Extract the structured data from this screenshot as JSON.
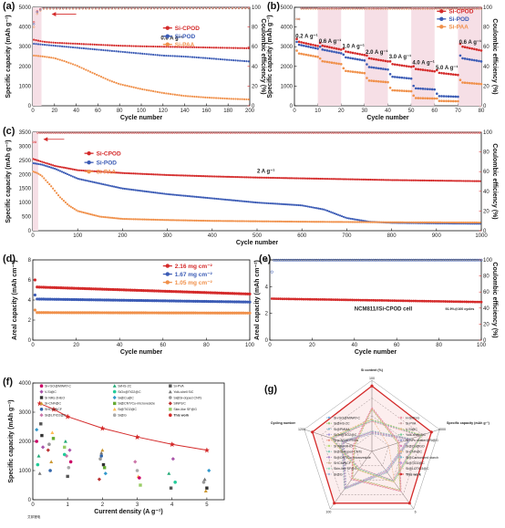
{
  "chart_data": [
    {
      "panel": "(a)",
      "type": "line",
      "xlabel": "Cycle number",
      "ylabel": "Specific capacity (mAh g⁻¹)",
      "ylabel_right": "Coulombic efficiency (%)",
      "xlim": [
        0,
        200
      ],
      "ylim": [
        0,
        5000
      ],
      "ylim_right": [
        0,
        100
      ],
      "xticks": [
        0,
        20,
        40,
        60,
        80,
        100,
        120,
        140,
        160,
        180,
        200
      ],
      "yticks": [
        0,
        1000,
        2000,
        3000,
        4000,
        5000
      ],
      "yticks_right": [
        0,
        20,
        40,
        60,
        80,
        100
      ],
      "annotation": "0.6 A g⁻¹",
      "legend": [
        "Si-CPOD",
        "Si-POD",
        "Si-PAA"
      ],
      "series": [
        {
          "name": "Si-CPOD",
          "color": "#d42a2a",
          "x": [
            1,
            10,
            20,
            40,
            60,
            80,
            100,
            120,
            140,
            160,
            180,
            200
          ],
          "y": [
            3350,
            3250,
            3200,
            3150,
            3100,
            3050,
            3020,
            3000,
            2980,
            2960,
            2940,
            2920
          ]
        },
        {
          "name": "Si-POD",
          "color": "#3b5bb5",
          "x": [
            1,
            10,
            20,
            40,
            60,
            80,
            100,
            120,
            140,
            160,
            180,
            200
          ],
          "y": [
            3150,
            3100,
            3050,
            2950,
            2850,
            2750,
            2650,
            2550,
            2500,
            2420,
            2330,
            2250
          ]
        },
        {
          "name": "Si-PAA",
          "color": "#f0904a",
          "x": [
            1,
            10,
            20,
            30,
            40,
            50,
            60,
            70,
            80,
            100,
            120,
            140,
            160,
            180,
            200
          ],
          "y": [
            2550,
            2500,
            2420,
            2250,
            2050,
            1800,
            1550,
            1300,
            1100,
            850,
            650,
            500,
            420,
            360,
            320
          ]
        }
      ],
      "ce_series": [
        {
          "name": "Si-CPOD",
          "color": "#d42a2a",
          "x": [
            1,
            3,
            6,
            10,
            200
          ],
          "y": [
            85,
            95,
            98,
            99,
            99.5
          ]
        },
        {
          "name": "Si-POD",
          "color": "#3b5bb5",
          "x": [
            1,
            3,
            6,
            10,
            200
          ],
          "y": [
            83,
            94,
            97,
            98.8,
            99.3
          ]
        },
        {
          "name": "Si-PAA",
          "color": "#f0904a",
          "x": [
            1,
            3,
            6,
            10,
            200
          ],
          "y": [
            80,
            92,
            96,
            98.5,
            99
          ]
        }
      ]
    },
    {
      "panel": "(b)",
      "type": "scatter",
      "xlabel": "Cycle number",
      "ylabel": "Specific capacity (mAh g⁻¹)",
      "ylabel_right": "Coulombic efficiency (%)",
      "xlim": [
        0,
        80
      ],
      "ylim": [
        0,
        5000
      ],
      "ylim_right": [
        0,
        100
      ],
      "xticks": [
        0,
        10,
        20,
        30,
        40,
        50,
        60,
        70,
        80
      ],
      "yticks": [
        0,
        1000,
        2000,
        3000,
        4000,
        5000
      ],
      "yticks_right": [
        0,
        20,
        40,
        60,
        80,
        100
      ],
      "rate_labels": [
        "0.2 A g⁻¹",
        "0.6 A g⁻¹",
        "1.0 A g⁻¹",
        "2.0 A g⁻¹",
        "3.0 A g⁻¹",
        "4.0 A g⁻¹",
        "5.0 A g⁻¹",
        "0.6 A g⁻¹"
      ],
      "rate_segments": [
        [
          0,
          10
        ],
        [
          10,
          20
        ],
        [
          20,
          30
        ],
        [
          30,
          40
        ],
        [
          40,
          50
        ],
        [
          50,
          60
        ],
        [
          60,
          70
        ],
        [
          70,
          80
        ]
      ],
      "legend": [
        "Si-CPOD",
        "Si-POD",
        "Si-PAA"
      ],
      "series": [
        {
          "name": "Si-CPOD",
          "color": "#d42a2a",
          "levels": [
            3300,
            3100,
            2800,
            2450,
            2150,
            1900,
            1700,
            3050
          ]
        },
        {
          "name": "Si-POD",
          "color": "#3b5bb5",
          "levels": [
            3150,
            2900,
            2500,
            2000,
            1500,
            900,
            500,
            2450
          ]
        },
        {
          "name": "Si-PAA",
          "color": "#f0904a",
          "levels": [
            2700,
            2300,
            1800,
            1300,
            800,
            400,
            250,
            1200
          ]
        }
      ]
    },
    {
      "panel": "(c)",
      "type": "line",
      "xlabel": "Cycle number",
      "ylabel": "Specific capacity (mAh g⁻¹)",
      "ylabel_right": "Coulombic efficiency (%)",
      "xlim": [
        0,
        1000
      ],
      "ylim": [
        0,
        3500
      ],
      "ylim_right": [
        0,
        100
      ],
      "xticks": [
        0,
        100,
        200,
        300,
        400,
        500,
        600,
        700,
        800,
        900,
        1000
      ],
      "yticks": [
        0,
        500,
        1000,
        1500,
        2000,
        2500,
        3000,
        3500
      ],
      "yticks_right": [
        0,
        20,
        40,
        60,
        80,
        100
      ],
      "annotation": "2 A g⁻¹",
      "legend": [
        "Si-CPOD",
        "Si-POD",
        "Si-PAA"
      ],
      "series": [
        {
          "name": "Si-CPOD",
          "color": "#d42a2a",
          "x": [
            1,
            20,
            50,
            100,
            200,
            300,
            400,
            500,
            600,
            700,
            800,
            900,
            1000
          ],
          "y": [
            2550,
            2450,
            2300,
            2150,
            2050,
            1980,
            1930,
            1890,
            1860,
            1830,
            1800,
            1780,
            1760
          ]
        },
        {
          "name": "Si-POD",
          "color": "#3b5bb5",
          "x": [
            1,
            20,
            50,
            100,
            200,
            300,
            400,
            500,
            600,
            650,
            700,
            750,
            800,
            900,
            1000
          ],
          "y": [
            2400,
            2350,
            2200,
            1850,
            1500,
            1300,
            1150,
            1000,
            900,
            750,
            450,
            320,
            280,
            260,
            250
          ]
        },
        {
          "name": "Si-PAA",
          "color": "#f0904a",
          "x": [
            1,
            10,
            20,
            40,
            60,
            80,
            100,
            150,
            200,
            300,
            400,
            600,
            800,
            1000
          ],
          "y": [
            2100,
            2050,
            1950,
            1600,
            1200,
            900,
            700,
            500,
            420,
            380,
            350,
            320,
            300,
            290
          ]
        }
      ]
    },
    {
      "panel": "(d)",
      "type": "scatter",
      "xlabel": "Cycle number",
      "ylabel": "Areal capacity (mAh cm⁻²)",
      "xlim": [
        0,
        100
      ],
      "ylim": [
        0,
        8
      ],
      "xticks": [
        0,
        20,
        40,
        60,
        80,
        100
      ],
      "yticks": [
        0,
        2,
        4,
        6,
        8
      ],
      "legend": [
        "2.16 mg cm⁻²",
        "1.67 mg cm⁻²",
        "1.05 mg cm⁻²"
      ],
      "series": [
        {
          "name": "2.16 mg cm⁻²",
          "color": "#d42a2a",
          "x": [
            1,
            100
          ],
          "y": [
            5.3,
            4.6
          ],
          "first": 6.0
        },
        {
          "name": "1.67 mg cm⁻²",
          "color": "#3b5bb5",
          "x": [
            1,
            100
          ],
          "y": [
            4.1,
            3.8
          ],
          "first": 4.5
        },
        {
          "name": "1.05 mg cm⁻²",
          "color": "#f0904a",
          "x": [
            1,
            100
          ],
          "y": [
            2.75,
            2.7
          ],
          "first": 3.0
        }
      ]
    },
    {
      "panel": "(e)",
      "type": "scatter",
      "xlabel": "Cycle number",
      "ylabel": "Areal capacity (mAh cm⁻²)",
      "ylabel_right": "Coulombic efficiency (%)",
      "xlim": [
        0,
        100
      ],
      "ylim": [
        0,
        6
      ],
      "ylim_right": [
        0,
        100
      ],
      "xticks": [
        0,
        20,
        40,
        60,
        80,
        100
      ],
      "yticks": [
        0,
        2,
        4,
        6
      ],
      "yticks_right": [
        0,
        20,
        40,
        60,
        80,
        100
      ],
      "annotation": "NCM811//Si-CPOD cell",
      "retention": "91.9%@100 cycles",
      "series": [
        {
          "name": "capacity",
          "color": "#d42a2a",
          "x": [
            1,
            100
          ],
          "y": [
            3.1,
            2.85
          ]
        },
        {
          "name": "CE",
          "color": "#3b5bb5",
          "x": [
            1,
            2,
            100
          ],
          "y": [
            85,
            99.6,
            99.7
          ]
        }
      ]
    },
    {
      "panel": "(f)",
      "type": "scatter",
      "xlabel": "Current density (A g⁻¹)",
      "ylabel": "Specific capacity (mAh g⁻¹)",
      "xlim": [
        0,
        5.5
      ],
      "ylim": [
        0,
        4000
      ],
      "xticks": [
        0,
        1,
        2,
        3,
        4,
        5
      ],
      "yticks": [
        0,
        1000,
        2000,
        3000,
        4000
      ],
      "legend": [
        "Si-rGO@MWAT-C",
        "Si/HS-2C",
        "Si-PVA",
        "V-Si@C",
        "SiOx@TiO2@C",
        "Yolk-shell SiC",
        "Si NRs-2HEO",
        "Si@Cu@C",
        "Si@Si-doped CNTs",
        "Si-CNF@C",
        "Si@CNT/Cu-microvesicle",
        "SiNPs/C",
        "SHCM/NCF",
        "Si@TiO2@C",
        "Skin-like SF@G",
        "Si@LiTiO2@C",
        "Si@G",
        "This work"
      ],
      "this_work": {
        "x": [
          0.2,
          0.6,
          1,
          2,
          3,
          4,
          5
        ],
        "y": [
          3300,
          3100,
          2850,
          2450,
          2150,
          1900,
          1700
        ],
        "color": "#d42a2a"
      },
      "literature_points": [
        [
          0.2,
          2000
        ],
        [
          0.2,
          1500
        ],
        [
          0.2,
          2600
        ],
        [
          0.2,
          1800
        ],
        [
          0.2,
          1200
        ],
        [
          0.2,
          900
        ],
        [
          0.2,
          2200
        ],
        [
          0.2,
          2400
        ],
        [
          0.5,
          1900
        ],
        [
          0.5,
          1300
        ],
        [
          0.5,
          2100
        ],
        [
          0.5,
          1700
        ],
        [
          0.5,
          1000
        ],
        [
          0.5,
          2300
        ],
        [
          1,
          1800
        ],
        [
          1,
          1500
        ],
        [
          1,
          1100
        ],
        [
          1,
          1300
        ],
        [
          1,
          2000
        ],
        [
          1,
          800
        ],
        [
          1,
          1700
        ],
        [
          1,
          1550
        ],
        [
          2,
          1600
        ],
        [
          2,
          1200
        ],
        [
          2,
          900
        ],
        [
          2,
          1400
        ],
        [
          2,
          1700
        ],
        [
          2,
          1100
        ],
        [
          2,
          700
        ],
        [
          2,
          1500
        ],
        [
          3,
          800
        ],
        [
          3,
          500
        ],
        [
          3,
          1300
        ],
        [
          3,
          1000
        ],
        [
          3,
          750
        ],
        [
          4,
          900
        ],
        [
          4,
          400
        ],
        [
          4,
          1400
        ],
        [
          4,
          600
        ],
        [
          5,
          700
        ],
        [
          5,
          400
        ],
        [
          5,
          1000
        ],
        [
          5,
          600
        ],
        [
          5,
          300
        ]
      ]
    },
    {
      "panel": "(g)",
      "type": "radar",
      "axes": [
        "Si content (%)",
        "Specific capacity (mAh g⁻¹)",
        "Areal capacity (mAh cm⁻²)",
        "Initial capacity efficiency (%)",
        "Cycling number"
      ],
      "axis_max": [
        "100",
        "4000",
        "6",
        "100",
        "1200"
      ],
      "this_work": {
        "name": "This work",
        "color": "#d42a2a",
        "values": [
          0.92,
          0.88,
          0.9,
          0.9,
          0.88
        ]
      },
      "legend": [
        "Si-rGO@MWAT-C",
        "H-Si/PoG",
        "Si@HS-2C",
        "Si-PVA",
        "Si@PMMA",
        "V-Si@C",
        "SiOx@TiO2@C",
        "Yolk-shell SiC",
        "Si-p-NSAT/TNSs",
        "Si NPs cluster@Si@G",
        "Si NRs-MHO",
        "Si@Cu@GO",
        "Si@Si-doped CNTs",
        "Si-CNF@C",
        "Si@CNT/Cu-microvesicle",
        "Si@Carbonized starch",
        "SHCM/NCF",
        "Si@TiO2@C",
        "Skin-like SF@G",
        "Si@Li2TiO3@C",
        "Si@G",
        "This work"
      ]
    }
  ],
  "watermark": "艾邦锂电"
}
